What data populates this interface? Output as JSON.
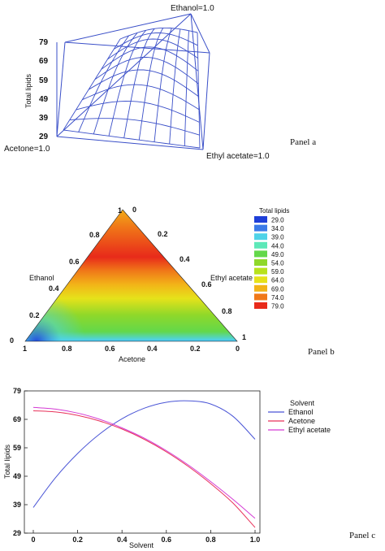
{
  "chart_data": [
    {
      "type": "surface3d",
      "panel_label": "Panel a",
      "zlabel": "Total lipids",
      "z_ticks": [
        "79",
        "69",
        "59",
        "49",
        "39",
        "29"
      ],
      "zlim": [
        29,
        79
      ],
      "vertex_labels": {
        "top": "Ethanol=1.0",
        "left": "Acetone=1.0",
        "right": "Ethyl acetate=1.0"
      },
      "colors": {
        "mesh": "#3a4fc8",
        "frame": "#3a4fc8"
      }
    },
    {
      "type": "heatmap",
      "panel_label": "Panel b",
      "legend_title": "Total lipids",
      "legend_levels": [
        "29.0",
        "34.0",
        "39.0",
        "44.0",
        "49.0",
        "54.0",
        "59.0",
        "64.0",
        "69.0",
        "74.0",
        "79.0"
      ],
      "legend_colors": [
        "#1f3fd8",
        "#3b7ae8",
        "#4fd3e8",
        "#5de8b8",
        "#63d84a",
        "#8fd82a",
        "#b8e21c",
        "#e6e21a",
        "#f2b418",
        "#f07818",
        "#e82a1a"
      ],
      "axis_labels": {
        "left": "Ethanol",
        "right": "Ethyl acetate",
        "bottom": "Acetone"
      },
      "bottom_ticks": [
        "1",
        "0.8",
        "0.6",
        "0.4",
        "0.2",
        "0"
      ],
      "left_ticks": [
        "0",
        "0.2",
        "0.4",
        "0.6",
        "0.8",
        "1"
      ],
      "right_ticks": [
        "1",
        "0.8",
        "0.6",
        "0.4",
        "0.2",
        "0"
      ]
    },
    {
      "type": "line",
      "panel_label": "Panel c",
      "xlabel": "Solvent",
      "ylabel": "Total lipids",
      "xlim": [
        0,
        1.0
      ],
      "ylim": [
        29,
        79
      ],
      "x_ticks": [
        "0",
        "0.2",
        "0.4",
        "0.6",
        "0.8",
        "1.0"
      ],
      "y_ticks": [
        "29",
        "39",
        "49",
        "59",
        "69",
        "79"
      ],
      "legend_title": "Solvent",
      "legend_position": "right",
      "x": [
        0,
        0.1,
        0.2,
        0.3,
        0.4,
        0.5,
        0.6,
        0.7,
        0.8,
        0.9,
        1.0
      ],
      "series": [
        {
          "name": "Ethanol",
          "color": "#4a55d6",
          "values": [
            38,
            48.5,
            57,
            63.9,
            69.2,
            72.9,
            75.0,
            75.5,
            74.4,
            70.1,
            62
          ]
        },
        {
          "name": "Acetone",
          "color": "#e8325a",
          "values": [
            72,
            71.6,
            70.4,
            68.4,
            65.6,
            62.0,
            57.6,
            52.4,
            46.4,
            39.6,
            31
          ]
        },
        {
          "name": "Ethyl acetate",
          "color": "#d43ad4",
          "values": [
            73.2,
            72.6,
            71.2,
            69.0,
            66.0,
            62.4,
            58.0,
            52.9,
            47.1,
            40.9,
            34.2
          ]
        }
      ]
    }
  ]
}
